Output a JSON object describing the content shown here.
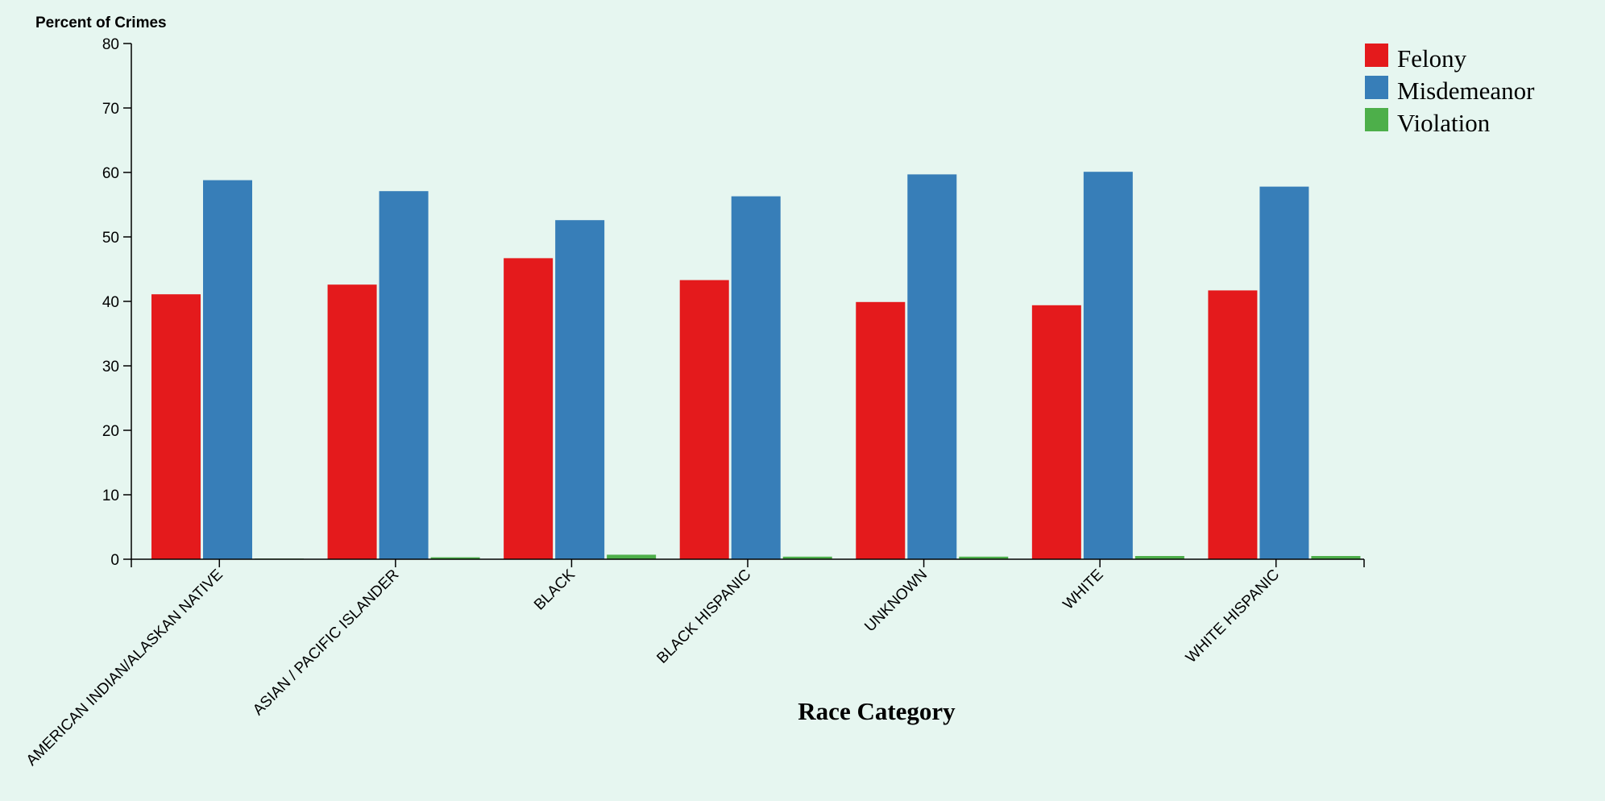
{
  "chart_data": {
    "type": "bar",
    "title": "",
    "xlabel": "Race Category",
    "ylabel": "Percent of Crimes",
    "ylim": [
      0,
      80
    ],
    "yticks": [
      0,
      10,
      20,
      30,
      40,
      50,
      60,
      70,
      80
    ],
    "categories": [
      "AMERICAN INDIAN/ALASKAN NATIVE",
      "ASIAN / PACIFIC ISLANDER",
      "BLACK",
      "BLACK HISPANIC",
      "UNKNOWN",
      "WHITE",
      "WHITE HISPANIC"
    ],
    "series": [
      {
        "name": "Felony",
        "color": "#e41a1c",
        "values": [
          41.1,
          42.6,
          46.7,
          43.3,
          39.9,
          39.4,
          41.7
        ]
      },
      {
        "name": "Misdemeanor",
        "color": "#377eb8",
        "values": [
          58.8,
          57.1,
          52.6,
          56.3,
          59.7,
          60.1,
          57.8
        ]
      },
      {
        "name": "Violation",
        "color": "#4daf4a",
        "values": [
          0.1,
          0.3,
          0.7,
          0.4,
          0.4,
          0.5,
          0.5
        ]
      }
    ],
    "legend_position": "top-right",
    "grid": false
  }
}
